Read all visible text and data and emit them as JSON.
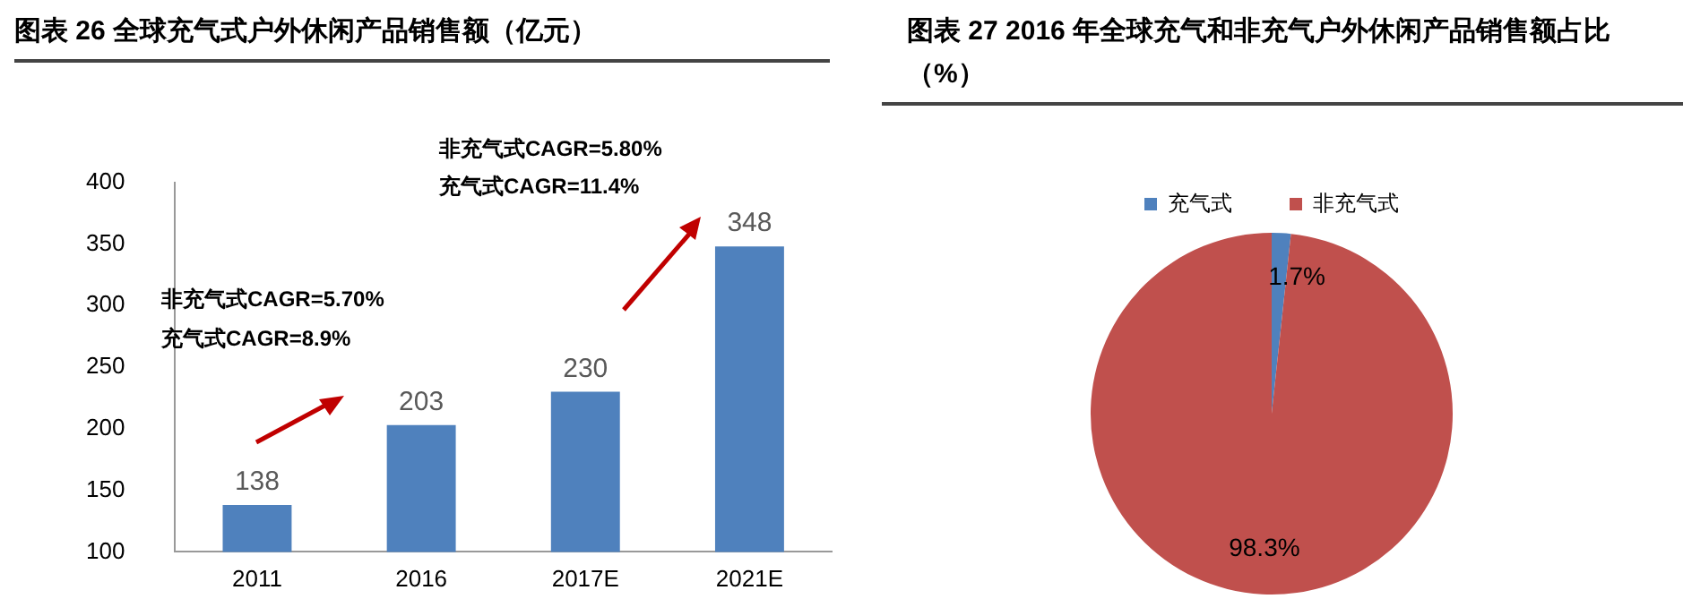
{
  "chart_data": [
    {
      "type": "bar",
      "title": "图表 26  全球充气式户外休闲产品销售额（亿元）",
      "categories": [
        "2011",
        "2016",
        "2017E",
        "2021E"
      ],
      "values": [
        138,
        203,
        230,
        348
      ],
      "color": "#4f81bd",
      "ylim": [
        100,
        400
      ],
      "yticks": [
        100,
        150,
        200,
        250,
        300,
        350,
        400
      ],
      "data_labels": true,
      "grid": false,
      "legend": false,
      "annotations": [
        "非充气式CAGR=5.80%",
        "充气式CAGR=11.4%",
        "非充气式CAGR=5.70%",
        "充气式CAGR=8.9%"
      ]
    },
    {
      "type": "pie",
      "title": "图表 27  2016 年全球充气和非充气户外休闲产品销售额占比（%）",
      "categories": [
        "充气式",
        "非充气式"
      ],
      "values": [
        1.7,
        98.3
      ],
      "colors": [
        "#4f81bd",
        "#c0504d"
      ],
      "value_labels": [
        "1.7%",
        "98.3%"
      ],
      "legend": "top"
    }
  ]
}
